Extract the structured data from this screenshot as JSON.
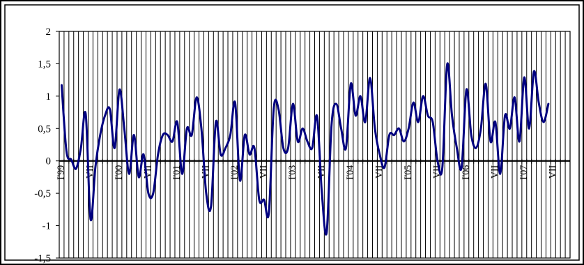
{
  "chart_data": {
    "type": "line",
    "title": "",
    "xlabel": "",
    "ylabel": "",
    "ylim": [
      -1.5,
      2
    ],
    "y_ticks": [
      "2",
      "1,5",
      "1",
      "0,5",
      "0",
      "-0,5",
      "-1",
      "-1,5"
    ],
    "y_tick_values": [
      2,
      1.5,
      1,
      0.5,
      0,
      -0.5,
      -1,
      -1.5
    ],
    "grid": "vertical lines at every month; horizontal line at zero",
    "legend": "none",
    "line_color": "#000080",
    "x_tick_labels": [
      {
        "index": 0,
        "label": "I'99"
      },
      {
        "index": 6,
        "label": "VII"
      },
      {
        "index": 12,
        "label": "I'00"
      },
      {
        "index": 18,
        "label": "VII"
      },
      {
        "index": 24,
        "label": "I'01"
      },
      {
        "index": 30,
        "label": "VII"
      },
      {
        "index": 36,
        "label": "I'02"
      },
      {
        "index": 42,
        "label": "VII"
      },
      {
        "index": 48,
        "label": "I'03"
      },
      {
        "index": 54,
        "label": "VII"
      },
      {
        "index": 60,
        "label": "I'04"
      },
      {
        "index": 66,
        "label": "VII"
      },
      {
        "index": 72,
        "label": "I'05"
      },
      {
        "index": 78,
        "label": "VII"
      },
      {
        "index": 84,
        "label": "I'06"
      },
      {
        "index": 90,
        "label": "VII"
      },
      {
        "index": 96,
        "label": "I'07"
      },
      {
        "index": 102,
        "label": "VII"
      }
    ],
    "series": [
      {
        "values": [
          1.17,
          0.15,
          0.02,
          -0.12,
          0.2,
          0.72,
          -0.9,
          -0.1,
          0.4,
          0.7,
          0.8,
          0.2,
          1.1,
          0.5,
          -0.2,
          0.4,
          -0.25,
          0.1,
          -0.5,
          -0.5,
          0.1,
          0.4,
          0.4,
          0.3,
          0.6,
          -0.2,
          0.5,
          0.4,
          0.98,
          0.5,
          -0.5,
          -0.7,
          0.6,
          0.1,
          0.2,
          0.4,
          0.9,
          -0.3,
          0.4,
          0.1,
          0.2,
          -0.6,
          -0.6,
          -0.8,
          0.8,
          0.8,
          0.2,
          0.2,
          0.88,
          0.3,
          0.5,
          0.3,
          0.2,
          0.69,
          -0.5,
          -1.1,
          0.55,
          0.88,
          0.5,
          0.2,
          1.19,
          0.7,
          1.0,
          0.6,
          1.28,
          0.5,
          0.1,
          -0.1,
          0.4,
          0.4,
          0.5,
          0.3,
          0.5,
          0.9,
          0.6,
          1.0,
          0.7,
          0.6,
          0.0,
          -0.1,
          1.49,
          0.7,
          0.2,
          -0.1,
          1.1,
          0.4,
          0.2,
          0.5,
          1.19,
          0.3,
          0.6,
          -0.2,
          0.7,
          0.5,
          0.98,
          0.3,
          1.29,
          0.5,
          1.38,
          0.9,
          0.6,
          0.88
        ]
      }
    ]
  }
}
